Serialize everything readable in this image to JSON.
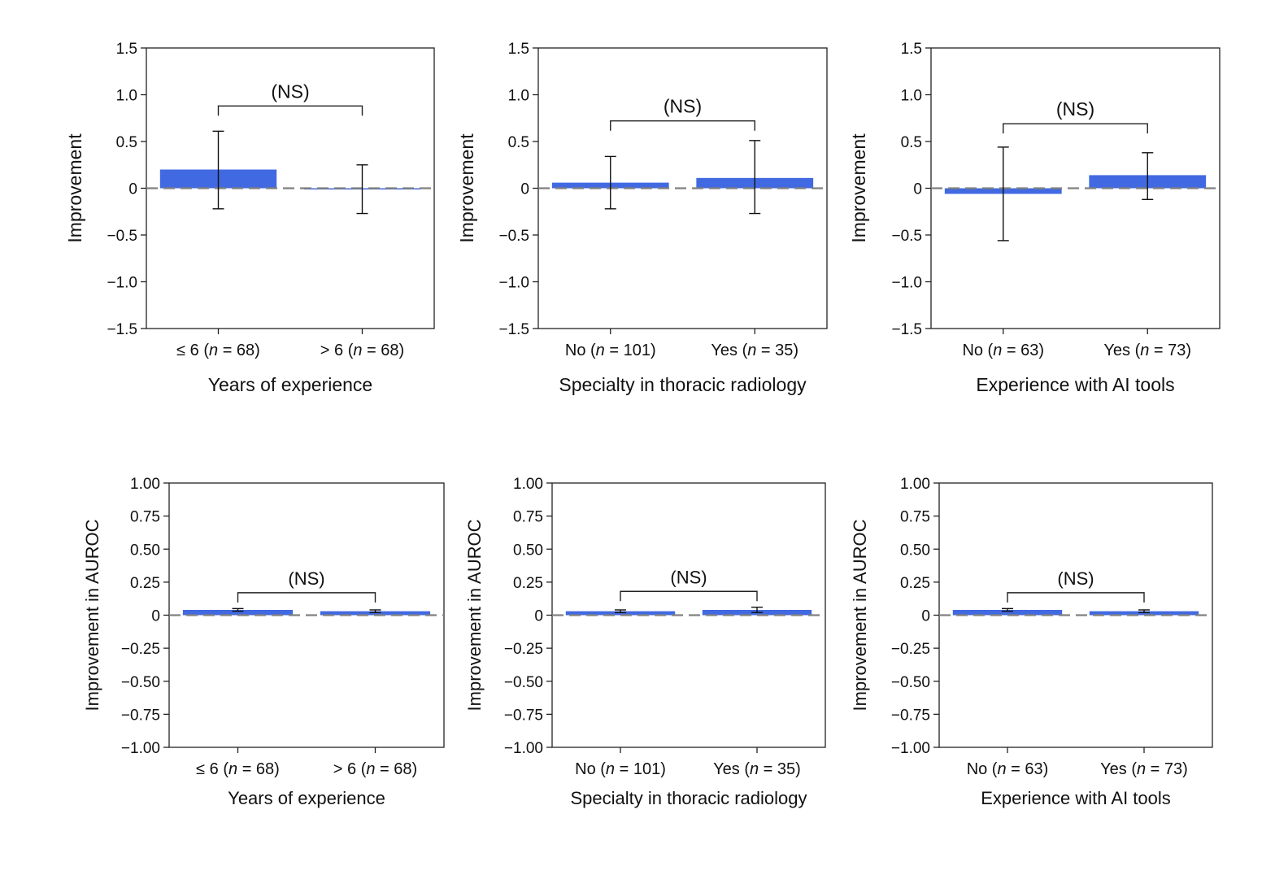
{
  "colors": {
    "bar": "#4169e1",
    "zero_line": "#808080",
    "axis": "#222222"
  },
  "chart_data": [
    {
      "type": "bar",
      "title": "",
      "ylabel": "Improvement",
      "xlabel": "Years of experience",
      "ylim": [
        -1.5,
        1.5
      ],
      "yticks": [
        1.5,
        1.0,
        0.5,
        0,
        -0.5,
        -1.0,
        -1.5
      ],
      "ytick_labels": [
        "1.5",
        "1.0",
        "0.5",
        "0",
        "−0.5",
        "−1.0",
        "−1.5"
      ],
      "categories": [
        "≤ 6 (n = 68)",
        "> 6 (n = 68)"
      ],
      "values": [
        0.2,
        0.0
      ],
      "err_high": [
        0.61,
        0.25
      ],
      "err_low": [
        -0.22,
        -0.27
      ],
      "annotation": "(NS)",
      "bracket_y": 0.88
    },
    {
      "type": "bar",
      "title": "",
      "ylabel": "Improvement",
      "xlabel": "Specialty in thoracic radiology",
      "ylim": [
        -1.5,
        1.5
      ],
      "yticks": [
        1.5,
        1.0,
        0.5,
        0,
        -0.5,
        -1.0,
        -1.5
      ],
      "ytick_labels": [
        "1.5",
        "1.0",
        "0.5",
        "0",
        "−0.5",
        "−1.0",
        "−1.5"
      ],
      "categories": [
        "No (n = 101)",
        "Yes (n = 35)"
      ],
      "values": [
        0.06,
        0.11
      ],
      "err_high": [
        0.34,
        0.51
      ],
      "err_low": [
        -0.22,
        -0.27
      ],
      "annotation": "(NS)",
      "bracket_y": 0.72
    },
    {
      "type": "bar",
      "title": "",
      "ylabel": "Improvement",
      "xlabel": "Experience with AI tools",
      "ylim": [
        -1.5,
        1.5
      ],
      "yticks": [
        1.5,
        1.0,
        0.5,
        0,
        -0.5,
        -1.0,
        -1.5
      ],
      "ytick_labels": [
        "1.5",
        "1.0",
        "0.5",
        "0",
        "−0.5",
        "−1.0",
        "−1.5"
      ],
      "categories": [
        "No (n = 63)",
        "Yes (n = 73)"
      ],
      "values": [
        -0.06,
        0.14
      ],
      "err_high": [
        0.44,
        0.38
      ],
      "err_low": [
        -0.56,
        -0.12
      ],
      "annotation": "(NS)",
      "bracket_y": 0.69
    },
    {
      "type": "bar",
      "title": "",
      "ylabel": "Improvement in AUROC",
      "xlabel": "Years of experience",
      "ylim": [
        -1.0,
        1.0
      ],
      "yticks": [
        1,
        0.75,
        0.5,
        0.25,
        0,
        -0.25,
        -0.5,
        -0.75,
        -1
      ],
      "ytick_labels": [
        "1.00",
        "0.75",
        "0.50",
        "0.25",
        "0",
        "−0.25",
        "−0.50",
        "−0.75",
        "−1.00"
      ],
      "categories": [
        "≤ 6 (n = 68)",
        "> 6 (n = 68)"
      ],
      "values": [
        0.04,
        0.03
      ],
      "err_high": [
        0.05,
        0.04
      ],
      "err_low": [
        0.03,
        0.02
      ],
      "annotation": "(NS)",
      "bracket_y": 0.17
    },
    {
      "type": "bar",
      "title": "",
      "ylabel": "Improvement in AUROC",
      "xlabel": "Specialty in thoracic radiology",
      "ylim": [
        -1.0,
        1.0
      ],
      "yticks": [
        1,
        0.75,
        0.5,
        0.25,
        0,
        -0.25,
        -0.5,
        -0.75,
        -1
      ],
      "ytick_labels": [
        "1.00",
        "0.75",
        "0.50",
        "0.25",
        "0",
        "−0.25",
        "−0.50",
        "−0.75",
        "−1.00"
      ],
      "categories": [
        "No (n = 101)",
        "Yes (n = 35)"
      ],
      "values": [
        0.03,
        0.04
      ],
      "err_high": [
        0.04,
        0.06
      ],
      "err_low": [
        0.02,
        0.02
      ],
      "annotation": "(NS)",
      "bracket_y": 0.18
    },
    {
      "type": "bar",
      "title": "",
      "ylabel": "Improvement in AUROC",
      "xlabel": "Experience with AI tools",
      "ylim": [
        -1.0,
        1.0
      ],
      "yticks": [
        1,
        0.75,
        0.5,
        0.25,
        0,
        -0.25,
        -0.5,
        -0.75,
        -1
      ],
      "ytick_labels": [
        "1.00",
        "0.75",
        "0.50",
        "0.25",
        "0",
        "−0.25",
        "−0.50",
        "−0.75",
        "−1.00"
      ],
      "categories": [
        "No (n = 63)",
        "Yes (n = 73)"
      ],
      "values": [
        0.04,
        0.03
      ],
      "err_high": [
        0.05,
        0.04
      ],
      "err_low": [
        0.03,
        0.02
      ],
      "annotation": "(NS)",
      "bracket_y": 0.17
    }
  ]
}
